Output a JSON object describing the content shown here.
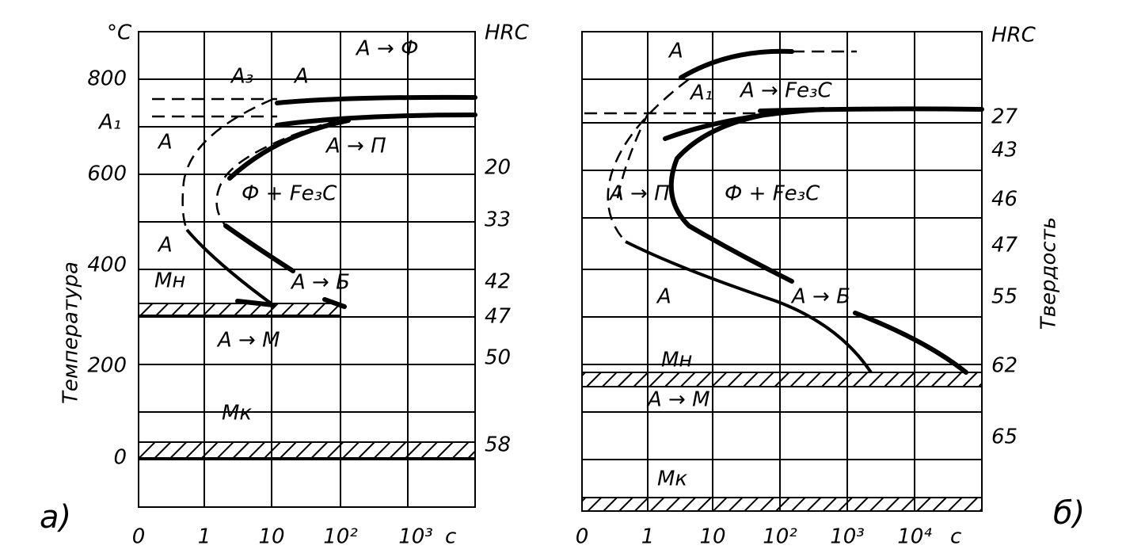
{
  "left_panel": {
    "panel_label": "а)",
    "temperature_unit": "°C",
    "hardness_unit": "HRC",
    "y_axis_title": "Температура",
    "temperature_ticks": [
      "800",
      "600",
      "400",
      "200",
      "0"
    ],
    "time_ticks": [
      "0",
      "1",
      "10",
      "10²",
      "10³"
    ],
    "time_unit": "с",
    "hardness_labels": [
      "20",
      "33",
      "42",
      "47",
      "50",
      "58"
    ],
    "critical_points": [
      "A₃",
      "A₁",
      "Mн",
      "Mк"
    ],
    "regions": [
      "A → Ф",
      "A",
      "A",
      "A → П",
      "Ф + Fe₃C",
      "A",
      "A → Б",
      "A → M"
    ]
  },
  "right_panel": {
    "panel_label": "б)",
    "hardness_unit": "HRC",
    "y_axis_title": "Твердость",
    "time_ticks": [
      "0",
      "1",
      "10",
      "10²",
      "10³",
      "10⁴"
    ],
    "time_unit": "с",
    "hardness_labels": [
      "27",
      "43",
      "46",
      "47",
      "55",
      "62",
      "65"
    ],
    "critical_points": [
      "A₁",
      "Mн",
      "Mк"
    ],
    "regions": [
      "A",
      "A → Fe₃C",
      "A → П",
      "Ф + Fe₃C",
      "A",
      "A → Б",
      "A → M"
    ]
  }
}
